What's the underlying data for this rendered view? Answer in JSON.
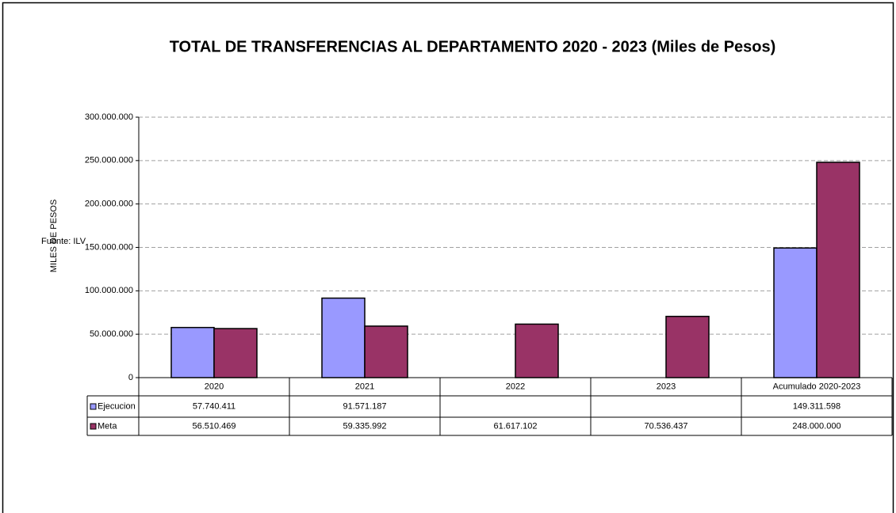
{
  "chart_data": {
    "type": "bar",
    "title": "TOTAL DE TRANSFERENCIAS AL DEPARTAMENTO  2020 - 2023  (Miles de Pesos)",
    "y_axis_label": "MILES DE PESOS",
    "annotation": "Fuente: ILV",
    "categories": [
      "2020",
      "2021",
      "2022",
      "2023",
      "Acumulado 2020-2023"
    ],
    "series": [
      {
        "name": "Ejecucion",
        "color": "#9999ff",
        "values": [
          57740411,
          91571187,
          null,
          null,
          149311598
        ],
        "value_labels": [
          "57.740.411",
          "91.571.187",
          null,
          null,
          "149.311.598"
        ]
      },
      {
        "name": "Meta",
        "color": "#993366",
        "values": [
          56510469,
          59335992,
          61617102,
          70536437,
          248000000
        ],
        "value_labels": [
          "56.510.469",
          "59.335.992",
          "61.617.102",
          "70.536.437",
          "248.000.000"
        ]
      }
    ],
    "ylim": [
      0,
      300000000
    ],
    "yticks": [
      0,
      {
        "value": 50000000,
        "label": "50.000.000"
      },
      {
        "value": 100000000,
        "label": "100.000.000"
      },
      {
        "value": 150000000,
        "label": "150.000.000"
      },
      {
        "value": 200000000,
        "label": "200.000.000"
      },
      {
        "value": 250000000,
        "label": "250.000.000"
      },
      {
        "value": 300000000,
        "label": "300.000.000"
      }
    ],
    "grid": true
  }
}
